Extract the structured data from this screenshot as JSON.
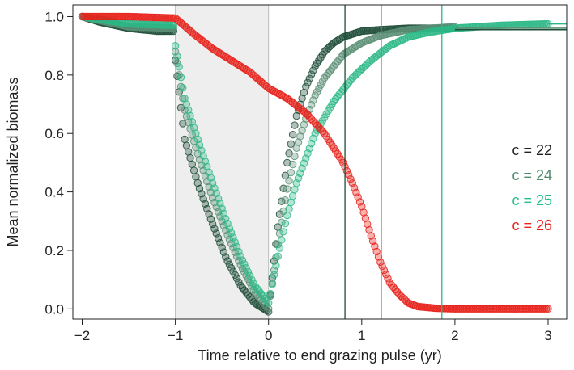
{
  "chart_data": {
    "type": "scatter",
    "title": "",
    "xlabel": "Time relative to end grazing pulse (yr)",
    "ylabel": "Mean normalized biomass",
    "xlim": [
      -2.1,
      3.2
    ],
    "ylim": [
      -0.035,
      1.04
    ],
    "xticks": [
      -2,
      -1,
      0,
      1,
      2,
      3
    ],
    "yticks": [
      0.0,
      0.2,
      0.4,
      0.6,
      0.8,
      1.0
    ],
    "xtick_labels": [
      "−2",
      "−1",
      "0",
      "1",
      "2",
      "3"
    ],
    "ytick_labels": [
      "0.0",
      "0.2",
      "0.4",
      "0.6",
      "0.8",
      "1.0"
    ],
    "grid": false,
    "legend_position": "right",
    "shaded_region": {
      "x": [
        -1,
        0
      ],
      "color": "#eeeeee"
    },
    "series": [
      {
        "name": "c = 22",
        "color": "#1f4e3a",
        "x": [
          -2.0,
          -1.8,
          -1.5,
          -1.2,
          -1.02,
          -1.0,
          -0.9,
          -0.75,
          -0.6,
          -0.45,
          -0.3,
          -0.15,
          0.0,
          0.1,
          0.2,
          0.3,
          0.4,
          0.5,
          0.6,
          0.7,
          0.8,
          1.0,
          1.2,
          1.5,
          2.0
        ],
        "y": [
          1.0,
          0.98,
          0.96,
          0.95,
          0.95,
          0.85,
          0.58,
          0.42,
          0.29,
          0.17,
          0.08,
          0.02,
          -0.01,
          0.28,
          0.5,
          0.66,
          0.76,
          0.83,
          0.88,
          0.91,
          0.93,
          0.95,
          0.955,
          0.96,
          0.96
        ],
        "hline": 0.955,
        "vline": 0.82
      },
      {
        "name": "c = 24",
        "color": "#5c8f75",
        "x": [
          -2.0,
          -1.5,
          -1.02,
          -1.0,
          -0.9,
          -0.75,
          -0.6,
          -0.45,
          -0.3,
          -0.15,
          0.0,
          0.1,
          0.2,
          0.3,
          0.4,
          0.5,
          0.6,
          0.8,
          1.0,
          1.2,
          1.5,
          2.0
        ],
        "y": [
          1.0,
          0.965,
          0.96,
          0.88,
          0.68,
          0.52,
          0.38,
          0.26,
          0.15,
          0.06,
          0.0,
          0.22,
          0.41,
          0.55,
          0.65,
          0.73,
          0.79,
          0.87,
          0.91,
          0.935,
          0.955,
          0.965
        ],
        "hline": 0.96,
        "vline": 1.21
      },
      {
        "name": "c = 25",
        "color": "#2bb886",
        "x": [
          -2.0,
          -1.5,
          -1.02,
          -1.0,
          -0.9,
          -0.75,
          -0.6,
          -0.45,
          -0.3,
          -0.15,
          0.0,
          0.1,
          0.2,
          0.3,
          0.5,
          0.7,
          0.9,
          1.1,
          1.3,
          1.5,
          1.7,
          2.0,
          2.5,
          3.0
        ],
        "y": [
          1.0,
          0.975,
          0.97,
          0.9,
          0.72,
          0.57,
          0.43,
          0.3,
          0.18,
          0.08,
          0.02,
          0.18,
          0.32,
          0.43,
          0.6,
          0.71,
          0.79,
          0.85,
          0.9,
          0.93,
          0.945,
          0.96,
          0.97,
          0.975
        ],
        "hline": 0.975,
        "vline": 1.86
      },
      {
        "name": "c = 26",
        "color": "#e8211b",
        "x": [
          -2.0,
          -1.5,
          -1.0,
          -0.8,
          -0.6,
          -0.4,
          -0.2,
          0.0,
          0.2,
          0.4,
          0.6,
          0.8,
          0.9,
          1.0,
          1.1,
          1.2,
          1.3,
          1.4,
          1.5,
          1.6,
          1.8,
          2.0,
          2.5,
          3.0
        ],
        "y": [
          1.0,
          1.0,
          0.995,
          0.94,
          0.89,
          0.85,
          0.81,
          0.755,
          0.72,
          0.67,
          0.6,
          0.5,
          0.43,
          0.35,
          0.25,
          0.16,
          0.09,
          0.05,
          0.02,
          0.008,
          0.002,
          0.0,
          0.0,
          0.0
        ]
      }
    ]
  }
}
